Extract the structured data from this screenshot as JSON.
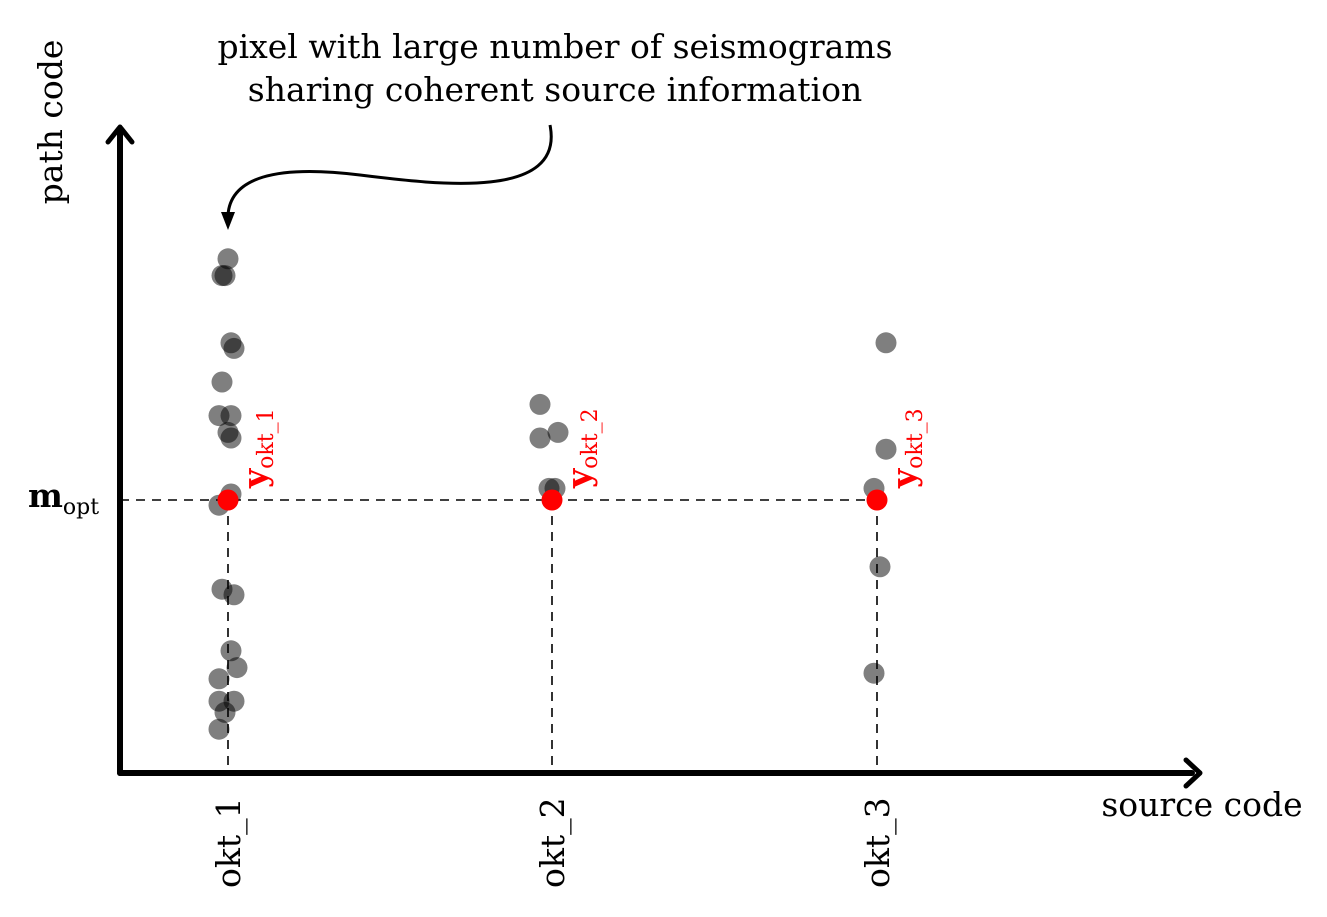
{
  "diagram": {
    "annotation": {
      "line1": "pixel with large number of seismograms",
      "line2": "sharing coherent source information"
    },
    "y_axis_label": "path code",
    "x_axis_label": "source code",
    "m_opt": {
      "symbol": "m",
      "subscript": "opt"
    },
    "red_color": "#ff0000",
    "dot_color": "#000000",
    "groups": [
      {
        "tick": "okt_1",
        "label_symbol": "y",
        "label_subscript": "okt_1",
        "points": [
          [
            1.0,
            9.2
          ],
          [
            0.9,
            8.9
          ],
          [
            0.95,
            8.9
          ],
          [
            1.1,
            7.6
          ],
          [
            1.05,
            7.7
          ],
          [
            0.9,
            7.0
          ],
          [
            0.85,
            6.4
          ],
          [
            1.05,
            6.4
          ],
          [
            1.0,
            6.1
          ],
          [
            1.05,
            6.0
          ],
          [
            1.05,
            5.0
          ],
          [
            0.85,
            4.8
          ],
          [
            0.9,
            3.3
          ],
          [
            1.1,
            3.2
          ],
          [
            1.05,
            2.2
          ],
          [
            1.15,
            1.9
          ],
          [
            0.85,
            1.7
          ],
          [
            1.1,
            1.3
          ],
          [
            0.85,
            1.3
          ],
          [
            0.95,
            1.1
          ],
          [
            0.85,
            0.8
          ]
        ]
      },
      {
        "tick": "okt_2",
        "label_symbol": "y",
        "label_subscript": "okt_2",
        "points": [
          [
            1.8,
            6.6
          ],
          [
            1.8,
            6.0
          ],
          [
            2.1,
            6.1
          ],
          [
            1.95,
            5.1
          ],
          [
            2.05,
            5.1
          ]
        ]
      },
      {
        "tick": "okt_3",
        "label_symbol": "y",
        "label_subscript": "okt_3",
        "points": [
          [
            3.15,
            7.7
          ],
          [
            3.15,
            5.8
          ],
          [
            2.95,
            5.1
          ],
          [
            3.05,
            3.7
          ],
          [
            2.95,
            1.8
          ]
        ]
      }
    ],
    "m_opt_level": 4.0
  }
}
